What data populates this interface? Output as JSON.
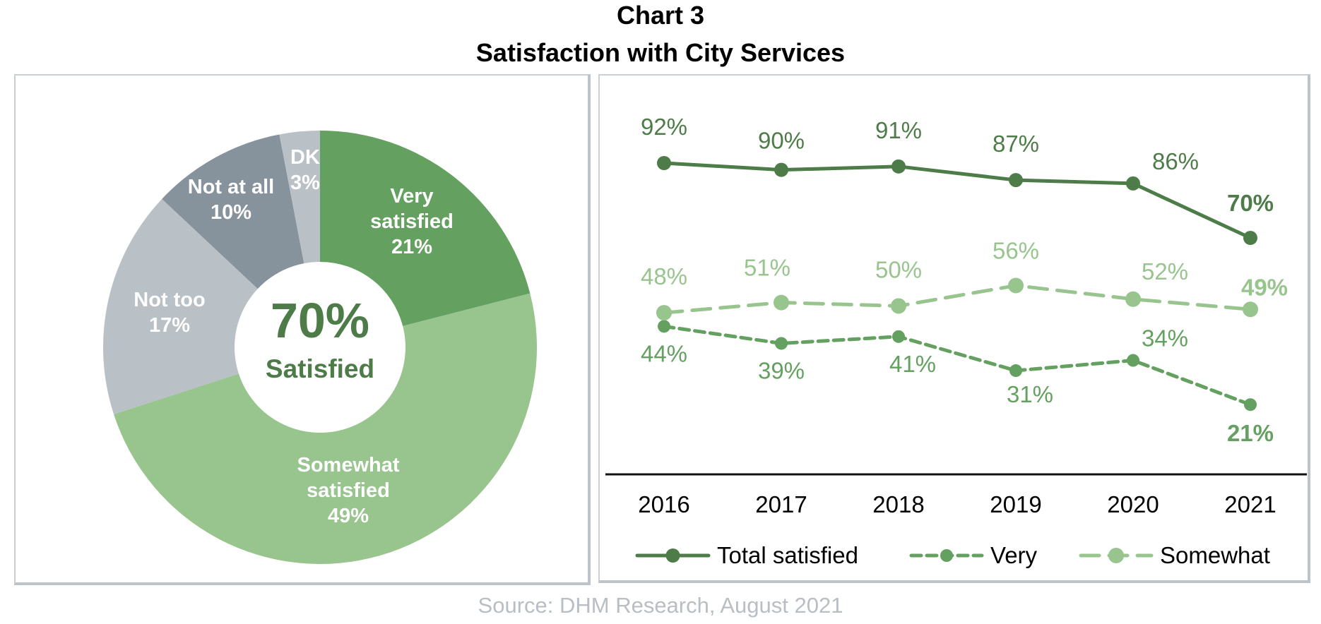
{
  "header": {
    "title_line1": "Chart 3",
    "title_line2": "Satisfaction with City Services"
  },
  "footer": {
    "source": "Source: DHM Research, August 2021"
  },
  "colors": {
    "dark_green": "#4e7c48",
    "mid_green": "#64a05f",
    "light_green": "#98c48e",
    "slate": "#86929c",
    "light_gray": "#b9c0c6",
    "label_white": "#ffffff",
    "axis": "#111111",
    "source_gray": "#b8bec4"
  },
  "chart_data": [
    {
      "type": "pie",
      "variant": "donut",
      "center_label": {
        "value": "70%",
        "label": "Satisfied"
      },
      "slices": [
        {
          "name": "Very satisfied",
          "label_lines": [
            "Very",
            "satisfied",
            "21%"
          ],
          "value": 21,
          "color": "#64a05f"
        },
        {
          "name": "Somewhat satisfied",
          "label_lines": [
            "Somewhat",
            "satisfied",
            "49%"
          ],
          "value": 49,
          "color": "#98c48e"
        },
        {
          "name": "Not too",
          "label_lines": [
            "Not too",
            "17%"
          ],
          "value": 17,
          "color": "#b9c0c6"
        },
        {
          "name": "Not at all",
          "label_lines": [
            "Not at all",
            "10%"
          ],
          "value": 10,
          "color": "#86929c"
        },
        {
          "name": "DK",
          "label_lines": [
            "DK",
            "3%"
          ],
          "value": 3,
          "color": "#b9c0c6"
        }
      ]
    },
    {
      "type": "line",
      "title": "",
      "xlabel": "",
      "ylabel": "",
      "x": [
        "2016",
        "2017",
        "2018",
        "2019",
        "2020",
        "2021"
      ],
      "ylim": [
        0,
        100
      ],
      "grid": false,
      "legend": "bottom",
      "series": [
        {
          "name": "Total satisfied",
          "values": [
            92,
            90,
            91,
            87,
            86,
            70
          ],
          "labels": [
            "92%",
            "90%",
            "91%",
            "87%",
            "86%",
            "70%"
          ],
          "color": "#4e7c48",
          "style": "solid",
          "marker": "circle"
        },
        {
          "name": "Very",
          "values": [
            44,
            39,
            41,
            31,
            34,
            21
          ],
          "labels": [
            "44%",
            "39%",
            "41%",
            "31%",
            "34%",
            "21%"
          ],
          "color": "#64a05f",
          "style": "dashed",
          "marker": "circle"
        },
        {
          "name": "Somewhat",
          "values": [
            48,
            51,
            50,
            56,
            52,
            49
          ],
          "labels": [
            "48%",
            "51%",
            "50%",
            "56%",
            "52%",
            "49%"
          ],
          "color": "#98c48e",
          "style": "long-dashed",
          "marker": "circle"
        }
      ]
    }
  ]
}
